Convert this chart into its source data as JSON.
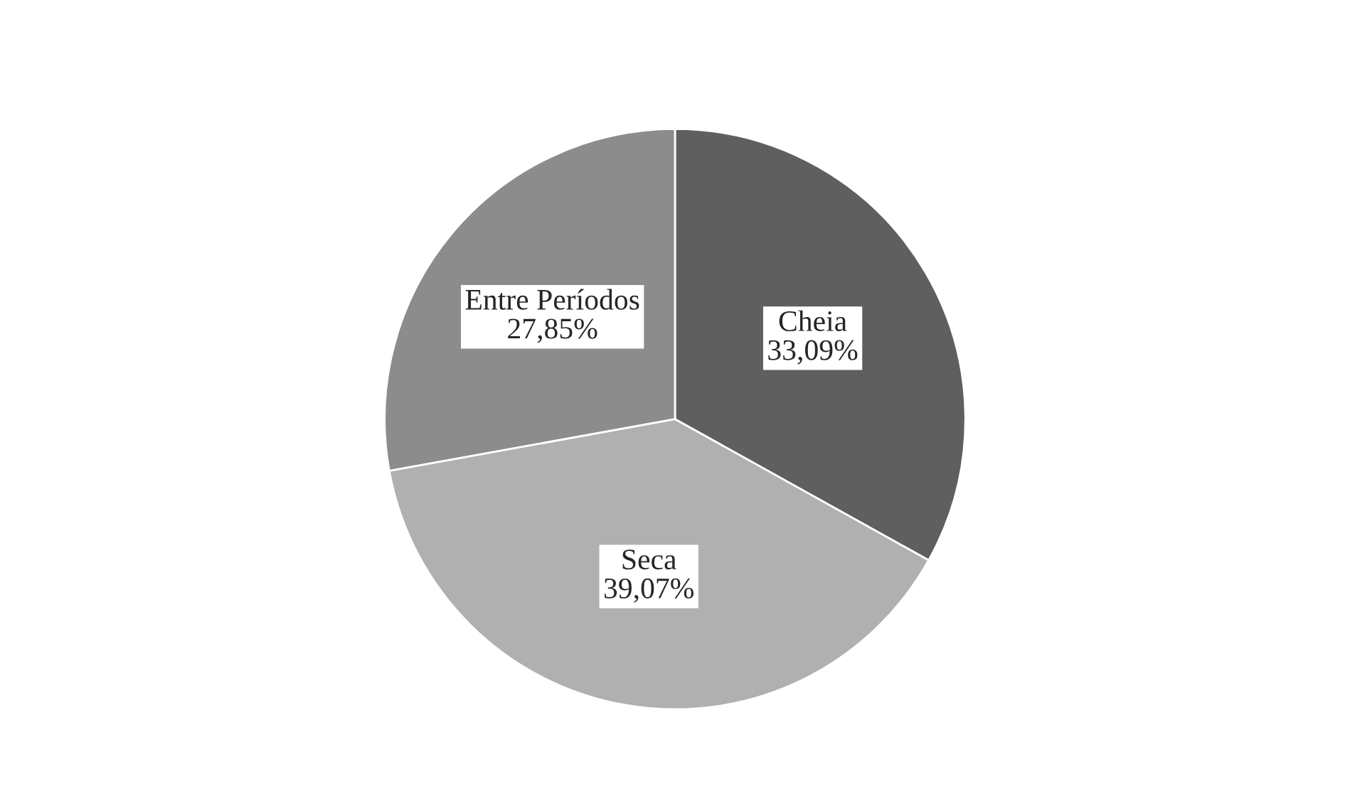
{
  "chart_data": {
    "type": "pie",
    "categories": [
      "Cheia",
      "Seca",
      "Entre Períodos"
    ],
    "values": [
      33.09,
      39.07,
      27.85
    ],
    "value_labels": [
      "33,09%",
      "39,07%",
      "27,85%"
    ],
    "colors": [
      "#5f5f5f",
      "#b0b0b0",
      "#8c8c8c"
    ],
    "legend": false
  }
}
